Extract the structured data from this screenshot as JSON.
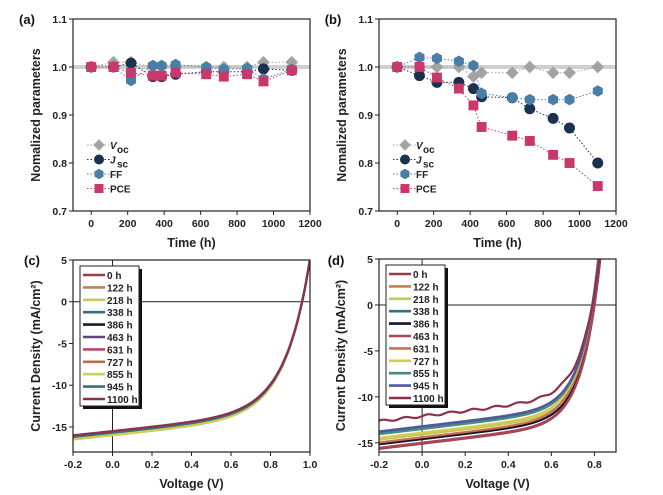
{
  "chart_data": [
    {
      "panel": "(a)",
      "type": "scatter",
      "xlabel": "Time (h)",
      "ylabel": "Nomalized parameters",
      "xlim": [
        -100,
        1200
      ],
      "ylim": [
        0.7,
        1.1
      ],
      "xticks": [
        0,
        200,
        400,
        600,
        800,
        1000,
        1200
      ],
      "yticks": [
        0.7,
        0.8,
        0.9,
        1.0,
        1.1
      ],
      "reference_line": 1.0,
      "legend_position": "bottom-left",
      "x": [
        0,
        122,
        218,
        338,
        386,
        463,
        631,
        727,
        855,
        945,
        1100
      ],
      "series": [
        {
          "name": "V",
          "sub": "oc",
          "italic": true,
          "marker": "diamond",
          "color": "#a3a3a3",
          "values": [
            1.0,
            1.01,
            1.01,
            1.0,
            1.0,
            1.0,
            1.0,
            1.0,
            1.0,
            1.01,
            1.01
          ]
        },
        {
          "name": "J",
          "sub": "sc",
          "italic": true,
          "marker": "circle",
          "color": "#1c3050",
          "values": [
            1.0,
            1.0,
            1.008,
            0.98,
            0.98,
            0.985,
            0.99,
            0.99,
            0.99,
            0.996,
            0.993
          ]
        },
        {
          "name": "FF",
          "sub": "",
          "italic": false,
          "marker": "hexagon",
          "color": "#4a7fa5",
          "values": [
            1.0,
            1.0,
            0.972,
            1.003,
            1.003,
            1.005,
            1.0,
            0.995,
            0.997,
            0.975,
            0.995
          ]
        },
        {
          "name": "PCE",
          "sub": "",
          "italic": false,
          "marker": "square",
          "color": "#c8386a",
          "values": [
            1.0,
            1.0,
            0.988,
            0.982,
            0.982,
            0.988,
            0.985,
            0.98,
            0.985,
            0.97,
            0.993
          ]
        }
      ]
    },
    {
      "panel": "(b)",
      "type": "scatter",
      "xlabel": "Time (h)",
      "ylabel": "Nomalized parameters",
      "xlim": [
        -100,
        1200
      ],
      "ylim": [
        0.7,
        1.1
      ],
      "xticks": [
        0,
        200,
        400,
        600,
        800,
        1000,
        1200
      ],
      "yticks": [
        0.7,
        0.8,
        0.9,
        1.0,
        1.1
      ],
      "reference_line": 1.0,
      "legend_position": "bottom-left",
      "x": [
        0,
        122,
        218,
        338,
        418,
        463,
        631,
        727,
        855,
        945,
        1100
      ],
      "series": [
        {
          "name": "V",
          "sub": "oc",
          "italic": true,
          "marker": "diamond",
          "color": "#a3a3a3",
          "values": [
            1.0,
            1.0,
            1.0,
            1.0,
            0.98,
            0.988,
            0.988,
            1.0,
            0.988,
            0.988,
            1.0
          ]
        },
        {
          "name": "J",
          "sub": "sc",
          "italic": true,
          "marker": "circle",
          "color": "#1c3050",
          "values": [
            1.0,
            0.982,
            0.968,
            0.968,
            0.955,
            0.938,
            0.936,
            0.913,
            0.893,
            0.873,
            0.8
          ]
        },
        {
          "name": "FF",
          "sub": "",
          "italic": false,
          "marker": "hexagon",
          "color": "#4a7fa5",
          "values": [
            1.0,
            1.02,
            1.018,
            1.012,
            1.003,
            0.945,
            0.936,
            0.932,
            0.932,
            0.932,
            0.95
          ]
        },
        {
          "name": "PCE",
          "sub": "",
          "italic": false,
          "marker": "square",
          "color": "#c8386a",
          "values": [
            1.0,
            1.0,
            0.978,
            0.955,
            0.92,
            0.875,
            0.857,
            0.846,
            0.817,
            0.8,
            0.752
          ]
        }
      ]
    },
    {
      "panel": "(c)",
      "type": "line",
      "xlabel": "Voltage (V)",
      "ylabel": "Current Density (mA/cm²)",
      "xlim": [
        -0.2,
        1.0
      ],
      "ylim": [
        -18,
        5
      ],
      "xticks": [
        -0.2,
        0.0,
        0.2,
        0.4,
        0.6,
        0.8,
        1.0
      ],
      "xticklabels": [
        "-0.2",
        "0.0",
        "0.2",
        "0.4",
        "0.6",
        "0.8",
        "1.0"
      ],
      "yticks": [
        5,
        0,
        -5,
        -10,
        -15
      ],
      "legend_position": "top-left",
      "curve_model": {
        "shunt_slope": 2.5,
        "diode_scale": 0.125
      },
      "series": [
        {
          "name": "0 h",
          "color": "#9b3a4a",
          "jsc": 15.7,
          "voc": 0.96
        },
        {
          "name": "122 h",
          "color": "#b8845a",
          "jsc": 15.8,
          "voc": 0.96
        },
        {
          "name": "218 h",
          "color": "#c9c860",
          "jsc": 16.0,
          "voc": 0.96
        },
        {
          "name": "338 h",
          "color": "#3a6e78",
          "jsc": 15.8,
          "voc": 0.96
        },
        {
          "name": "386 h",
          "color": "#1a1a38",
          "jsc": 15.7,
          "voc": 0.96
        },
        {
          "name": "463 h",
          "color": "#5e4678",
          "jsc": 15.6,
          "voc": 0.96
        },
        {
          "name": "631 h",
          "color": "#b84a6a",
          "jsc": 15.7,
          "voc": 0.96
        },
        {
          "name": "727 h",
          "color": "#b87048",
          "jsc": 15.8,
          "voc": 0.96
        },
        {
          "name": "855 h",
          "color": "#cfcf5c",
          "jsc": 15.9,
          "voc": 0.96
        },
        {
          "name": "945 h",
          "color": "#3e6e78",
          "jsc": 15.7,
          "voc": 0.96
        },
        {
          "name": "1100 h",
          "color": "#8a3050",
          "jsc": 15.5,
          "voc": 0.96
        }
      ]
    },
    {
      "panel": "(d)",
      "type": "line",
      "xlabel": "Voltage (V)",
      "ylabel": "Current Density (mA/cm²)",
      "xlim": [
        -0.2,
        0.9
      ],
      "ylim": [
        -16,
        5
      ],
      "xticks": [
        -0.2,
        0.0,
        0.2,
        0.4,
        0.6,
        0.8
      ],
      "xticklabels": [
        "-0.2",
        "0.0",
        "0.2",
        "0.4",
        "0.6",
        "0.8"
      ],
      "yticks": [
        5,
        0,
        -5,
        -10,
        -15
      ],
      "legend_position": "top-left",
      "curve_model": {
        "shunt_slope": 2.8,
        "diode_scale": 0.079
      },
      "series": [
        {
          "name": "0 h",
          "color": "#9b3a4a",
          "jsc": 15.1,
          "voc": 0.8
        },
        {
          "name": "122 h",
          "color": "#c08458",
          "jsc": 15.0,
          "voc": 0.8
        },
        {
          "name": "218 h",
          "color": "#c4c85a",
          "jsc": 14.1,
          "voc": 0.8
        },
        {
          "name": "338 h",
          "color": "#3a6e84",
          "jsc": 13.3,
          "voc": 0.79
        },
        {
          "name": "386 h",
          "color": "#151530",
          "jsc": 14.6,
          "voc": 0.8
        },
        {
          "name": "463 h",
          "color": "#a84458",
          "jsc": 15.0,
          "voc": 0.8
        },
        {
          "name": "631 h",
          "color": "#cc7050",
          "jsc": 14.4,
          "voc": 0.79
        },
        {
          "name": "727 h",
          "color": "#d2cc50",
          "jsc": 13.9,
          "voc": 0.79
        },
        {
          "name": "855 h",
          "color": "#4a8a84",
          "jsc": 13.5,
          "voc": 0.79
        },
        {
          "name": "945 h",
          "color": "#5058a0",
          "jsc": 13.2,
          "voc": 0.79
        },
        {
          "name": "1100 h",
          "color": "#8a3050",
          "jsc": 12.1,
          "voc": 0.79
        }
      ]
    }
  ]
}
